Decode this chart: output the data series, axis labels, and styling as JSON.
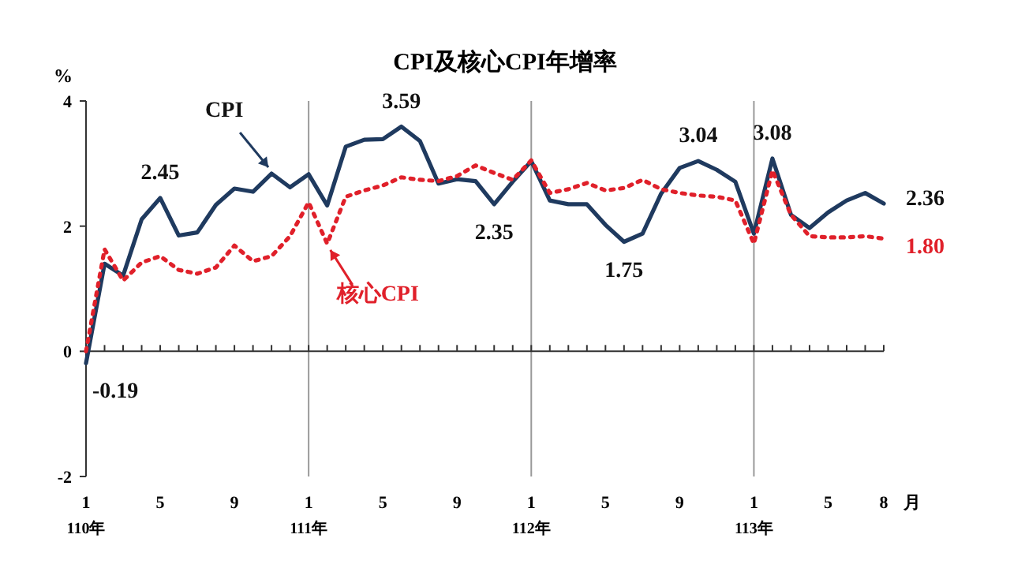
{
  "chart_data": {
    "type": "line",
    "title": "CPI及核心CPI年增率",
    "ylabel": "%",
    "xlabel": "月",
    "categories": [
      "1\n110年",
      null,
      null,
      null,
      "5",
      null,
      null,
      null,
      "9",
      null,
      null,
      null,
      "1\n111年",
      null,
      null,
      null,
      "5",
      null,
      null,
      null,
      "9",
      null,
      null,
      null,
      "1\n112年",
      null,
      null,
      null,
      "5",
      null,
      null,
      null,
      "9",
      null,
      null,
      null,
      "1\n113年",
      null,
      null,
      null,
      "5",
      null,
      null,
      "8"
    ],
    "ylim": [
      -2,
      4
    ],
    "yticks": [
      -2,
      0,
      2,
      4
    ],
    "grid": false,
    "ref_lines": [
      {
        "axis": "x",
        "value": "1\n111年",
        "color": "#999999"
      },
      {
        "axis": "x",
        "value": "1\n112年",
        "color": "#999999"
      },
      {
        "axis": "x",
        "value": "1\n113年",
        "color": "#999999"
      }
    ],
    "series": [
      {
        "name": "CPI",
        "color": "#1f3a5f",
        "line_style": "solid",
        "values": [
          -0.19,
          1.4,
          1.21,
          2.11,
          2.45,
          1.85,
          1.9,
          2.34,
          2.6,
          2.55,
          2.84,
          2.62,
          2.83,
          2.33,
          3.27,
          3.38,
          3.39,
          3.59,
          3.36,
          2.68,
          2.75,
          2.72,
          2.35,
          2.71,
          3.04,
          2.41,
          2.35,
          2.35,
          2.02,
          1.75,
          1.88,
          2.52,
          2.93,
          3.04,
          2.9,
          2.71,
          1.88,
          3.08,
          2.18,
          1.97,
          2.22,
          2.41,
          2.53,
          2.36
        ],
        "value_labels": [
          "-0.19",
          null,
          null,
          null,
          "2.45",
          null,
          null,
          null,
          null,
          null,
          null,
          null,
          null,
          null,
          null,
          null,
          null,
          "3.59",
          null,
          null,
          null,
          null,
          "2.35",
          null,
          null,
          null,
          null,
          null,
          null,
          "1.75",
          null,
          null,
          null,
          "3.04",
          null,
          null,
          null,
          "3.08",
          null,
          null,
          null,
          null,
          null,
          "2.36"
        ]
      },
      {
        "name": "核心CPI",
        "color": "#e0202a",
        "line_style": "dotted",
        "values": [
          0.0,
          1.63,
          1.13,
          1.42,
          1.52,
          1.3,
          1.24,
          1.34,
          1.69,
          1.44,
          1.52,
          1.84,
          2.38,
          1.72,
          2.47,
          2.57,
          2.65,
          2.78,
          2.74,
          2.72,
          2.8,
          2.97,
          2.85,
          2.74,
          3.05,
          2.53,
          2.59,
          2.69,
          2.57,
          2.61,
          2.74,
          2.59,
          2.53,
          2.49,
          2.47,
          2.41,
          1.72,
          2.89,
          2.18,
          1.84,
          1.82,
          1.82,
          1.84,
          1.8
        ],
        "value_labels": [
          null,
          null,
          null,
          null,
          null,
          null,
          null,
          null,
          null,
          null,
          null,
          null,
          null,
          null,
          null,
          null,
          null,
          null,
          null,
          null,
          null,
          null,
          null,
          null,
          null,
          null,
          null,
          null,
          null,
          null,
          null,
          null,
          null,
          null,
          null,
          null,
          null,
          null,
          null,
          null,
          null,
          null,
          null,
          "1.80"
        ]
      }
    ]
  }
}
